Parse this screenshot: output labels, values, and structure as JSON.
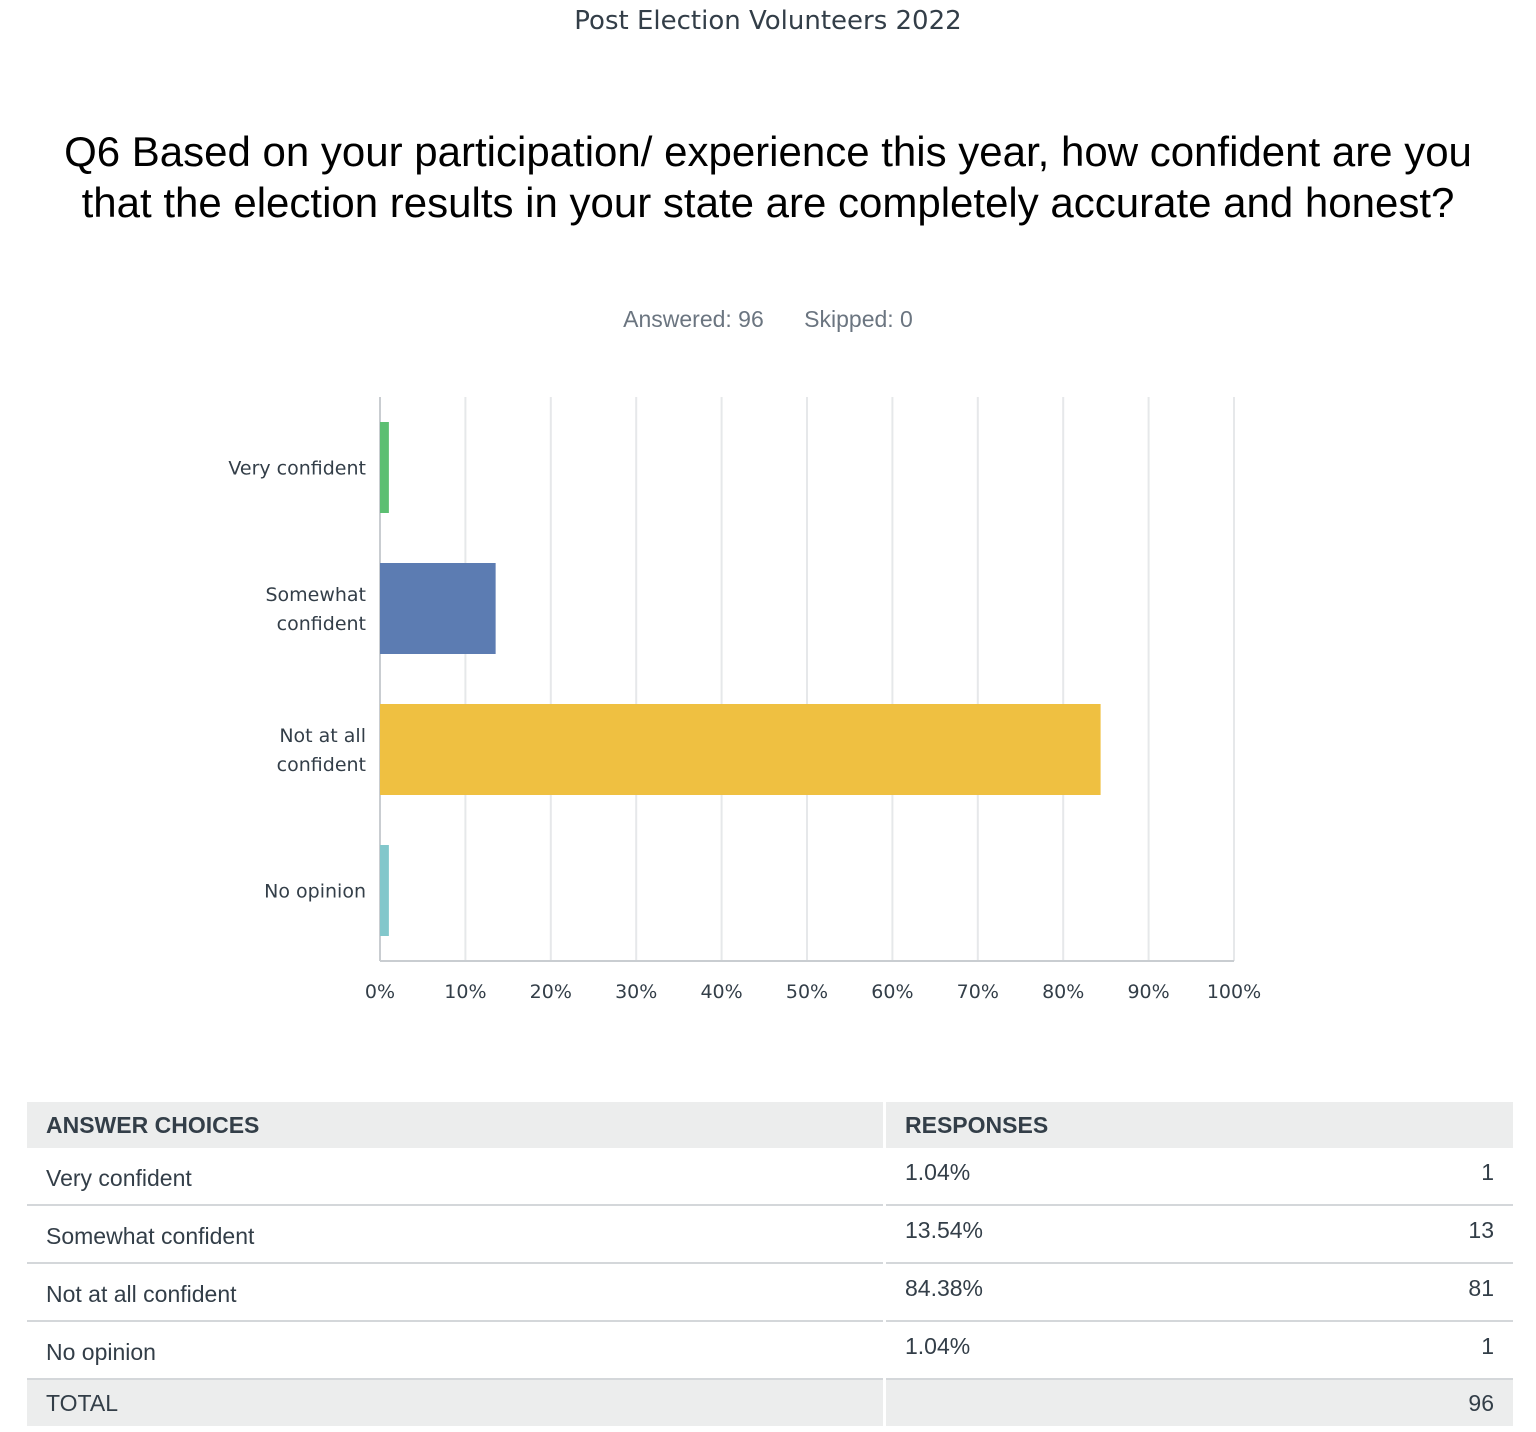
{
  "survey_title": "Post Election Volunteers 2022",
  "question": "Q6 Based on your participation/ experience this year, how confident are you that the election results in your state are completely accurate and honest?",
  "stats": {
    "answered": "Answered: 96",
    "skipped": "Skipped: 0"
  },
  "chart_data": {
    "type": "bar",
    "orientation": "horizontal",
    "categories": [
      "Very confident",
      "Somewhat confident",
      "Not at all confident",
      "No opinion"
    ],
    "values": [
      1.04,
      13.54,
      84.38,
      1.04
    ],
    "colors": [
      "#5cbf72",
      "#5c7cb2",
      "#efc041",
      "#82c7cb"
    ],
    "xlim": [
      0,
      100
    ],
    "xticks": [
      "0%",
      "10%",
      "20%",
      "30%",
      "40%",
      "50%",
      "60%",
      "70%",
      "80%",
      "90%",
      "100%"
    ],
    "grid": true
  },
  "table": {
    "headers": [
      "ANSWER CHOICES",
      "RESPONSES"
    ],
    "rows": [
      {
        "choice": "Very confident",
        "percent": "1.04%",
        "count": "1"
      },
      {
        "choice": "Somewhat confident",
        "percent": "13.54%",
        "count": "13"
      },
      {
        "choice": "Not at all confident",
        "percent": "84.38%",
        "count": "81"
      },
      {
        "choice": "No opinion",
        "percent": "1.04%",
        "count": "1"
      }
    ],
    "total_label": "TOTAL",
    "total_count": "96"
  }
}
